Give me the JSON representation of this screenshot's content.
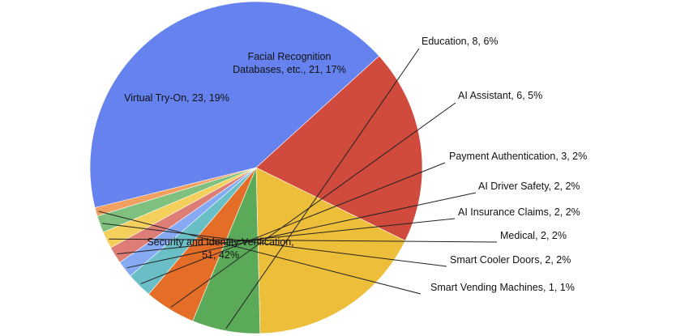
{
  "chart_data": {
    "type": "pie",
    "title": "",
    "slices": [
      {
        "label": "Security and Identity Verification",
        "value": 51,
        "percent": "42%",
        "display": [
          "Security and Identity Verification,",
          "51, 42%"
        ],
        "color": "#6582EF"
      },
      {
        "label": "Virtual Try-On",
        "value": 23,
        "percent": "19%",
        "display": [
          "Virtual Try-On, 23, 19%"
        ],
        "color": "#D04A3D"
      },
      {
        "label": "Facial Recognition Databases, etc.",
        "value": 21,
        "percent": "17%",
        "display": [
          "Facial Recognition",
          "Databases, etc., 21, 17%"
        ],
        "color": "#EDBE3A"
      },
      {
        "label": "Education",
        "value": 8,
        "percent": "6%",
        "display": [
          "Education, 8, 6%"
        ],
        "color": "#5AAA5A"
      },
      {
        "label": "AI Assistant",
        "value": 6,
        "percent": "5%",
        "display": [
          "AI Assistant, 6, 5%"
        ],
        "color": "#E46E28"
      },
      {
        "label": "Payment Authentication",
        "value": 3,
        "percent": "2%",
        "display": [
          "Payment Authentication, 3, 2%"
        ],
        "color": "#6ABFC6"
      },
      {
        "label": "AI Driver Safety",
        "value": 2,
        "percent": "2%",
        "display": [
          "AI Driver Safety, 2, 2%"
        ],
        "color": "#86A9F4"
      },
      {
        "label": "AI Insurance Claims",
        "value": 2,
        "percent": "2%",
        "display": [
          "AI Insurance Claims, 2, 2%"
        ],
        "color": "#DD7D76"
      },
      {
        "label": "Medical",
        "value": 2,
        "percent": "2%",
        "display": [
          "Medical, 2, 2%"
        ],
        "color": "#F4CF5C"
      },
      {
        "label": "Smart Cooler Doors",
        "value": 2,
        "percent": "2%",
        "display": [
          "Smart Cooler Doors, 2, 2%"
        ],
        "color": "#7FC07F"
      },
      {
        "label": "Smart Vending Machines",
        "value": 1,
        "percent": "1%",
        "display": [
          "Smart Vending Machines, 1, 1%"
        ],
        "color": "#F0A060"
      }
    ]
  }
}
